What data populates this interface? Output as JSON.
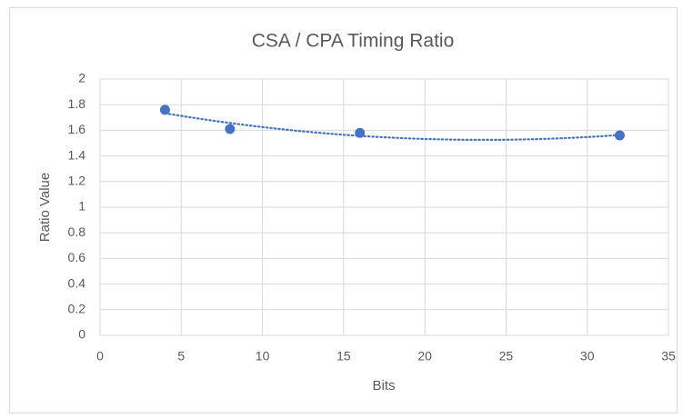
{
  "chart_data": {
    "type": "scatter",
    "title": "CSA / CPA Timing Ratio",
    "x_label": "Bits",
    "y_label": "Ratio Value",
    "x": [
      4,
      8,
      16,
      32
    ],
    "values": [
      1.76,
      1.61,
      1.58,
      1.56
    ],
    "color": "#4472c4",
    "xlim": [
      0,
      35
    ],
    "xticks": [
      0,
      5,
      10,
      15,
      20,
      25,
      30,
      35
    ],
    "ylim": [
      0,
      2
    ],
    "yticks": [
      0,
      0.2,
      0.4,
      0.6,
      0.8,
      1,
      1.2,
      1.4,
      1.6,
      1.8,
      2
    ],
    "grid": true,
    "trendline": "polynomial"
  }
}
